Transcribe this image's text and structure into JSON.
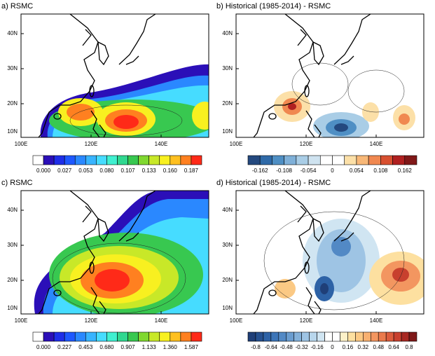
{
  "panels": [
    {
      "title": "a) RSMC",
      "lat_labels": [
        "40N",
        "30N",
        "20N",
        "10N"
      ],
      "lon_labels": [
        "100E",
        "120E",
        "140E"
      ],
      "colorbar": {
        "colors": [
          "#ffffff",
          "#2b0fb8",
          "#1e2ee8",
          "#1e58ff",
          "#2a88ff",
          "#38b4ff",
          "#46dcff",
          "#40f0d0",
          "#30d890",
          "#38c850",
          "#80d830",
          "#c8e828",
          "#f8f020",
          "#ffc020",
          "#ff8020",
          "#ff2a18"
        ],
        "labels": [
          "0.000",
          "0.027",
          "0.053",
          "0.080",
          "0.107",
          "0.133",
          "0.160",
          "0.187"
        ]
      }
    },
    {
      "title": "b) Historical (1985-2014) - RSMC",
      "lat_labels": [
        "40N",
        "30N",
        "20N",
        "10N"
      ],
      "lon_labels": [
        "100E",
        "120E",
        "140E"
      ],
      "colorbar": {
        "colors": [
          "#24497f",
          "#2f6aa8",
          "#4f8fc4",
          "#7fb0d8",
          "#a9cde6",
          "#cfe3f0",
          "#ffffff",
          "#ffffff",
          "#fce0a8",
          "#f8b878",
          "#f08850",
          "#d85030",
          "#b02020",
          "#801818"
        ],
        "labels": [
          "-0.162",
          "-0.108",
          "-0.054",
          "0",
          "0.054",
          "0.108",
          "0.162"
        ]
      }
    },
    {
      "title": "c) RSMC",
      "lat_labels": [
        "40N",
        "30N",
        "20N",
        "10N"
      ],
      "lon_labels": [
        "100E",
        "120E",
        "140E"
      ],
      "colorbar": {
        "colors": [
          "#ffffff",
          "#2b0fb8",
          "#1e2ee8",
          "#1e58ff",
          "#2a88ff",
          "#38b4ff",
          "#46dcff",
          "#40f0d0",
          "#30d890",
          "#38c850",
          "#80d830",
          "#c8e828",
          "#f8f020",
          "#ffc020",
          "#ff8020",
          "#ff2a18"
        ],
        "labels": [
          "0.000",
          "0.227",
          "0.453",
          "0.680",
          "0.907",
          "1.133",
          "1.360",
          "1.587"
        ]
      }
    },
    {
      "title": "d) Historical (1985-2014) - RSMC",
      "lat_labels": [
        "40N",
        "30N",
        "20N",
        "10N"
      ],
      "lon_labels": [
        "100E",
        "120E",
        "140E"
      ],
      "colorbar": {
        "colors": [
          "#1f3f78",
          "#25508f",
          "#2d62a6",
          "#3c75b8",
          "#5289c5",
          "#6a9dd0",
          "#84b1da",
          "#9ec4e4",
          "#b8d6ec",
          "#d0e5f2",
          "#ffffff",
          "#ffffff",
          "#fdf1c8",
          "#fde0a0",
          "#fbc984",
          "#f8b070",
          "#f39660",
          "#ea7a4c",
          "#dc5c3c",
          "#c8402e",
          "#a82822",
          "#7e1818"
        ],
        "labels": [
          "-0.8",
          "-0.64",
          "-0.48",
          "-0.32",
          "-0.16",
          "0",
          "0.16",
          "0.32",
          "0.48",
          "0.64",
          "0.8"
        ]
      }
    }
  ]
}
